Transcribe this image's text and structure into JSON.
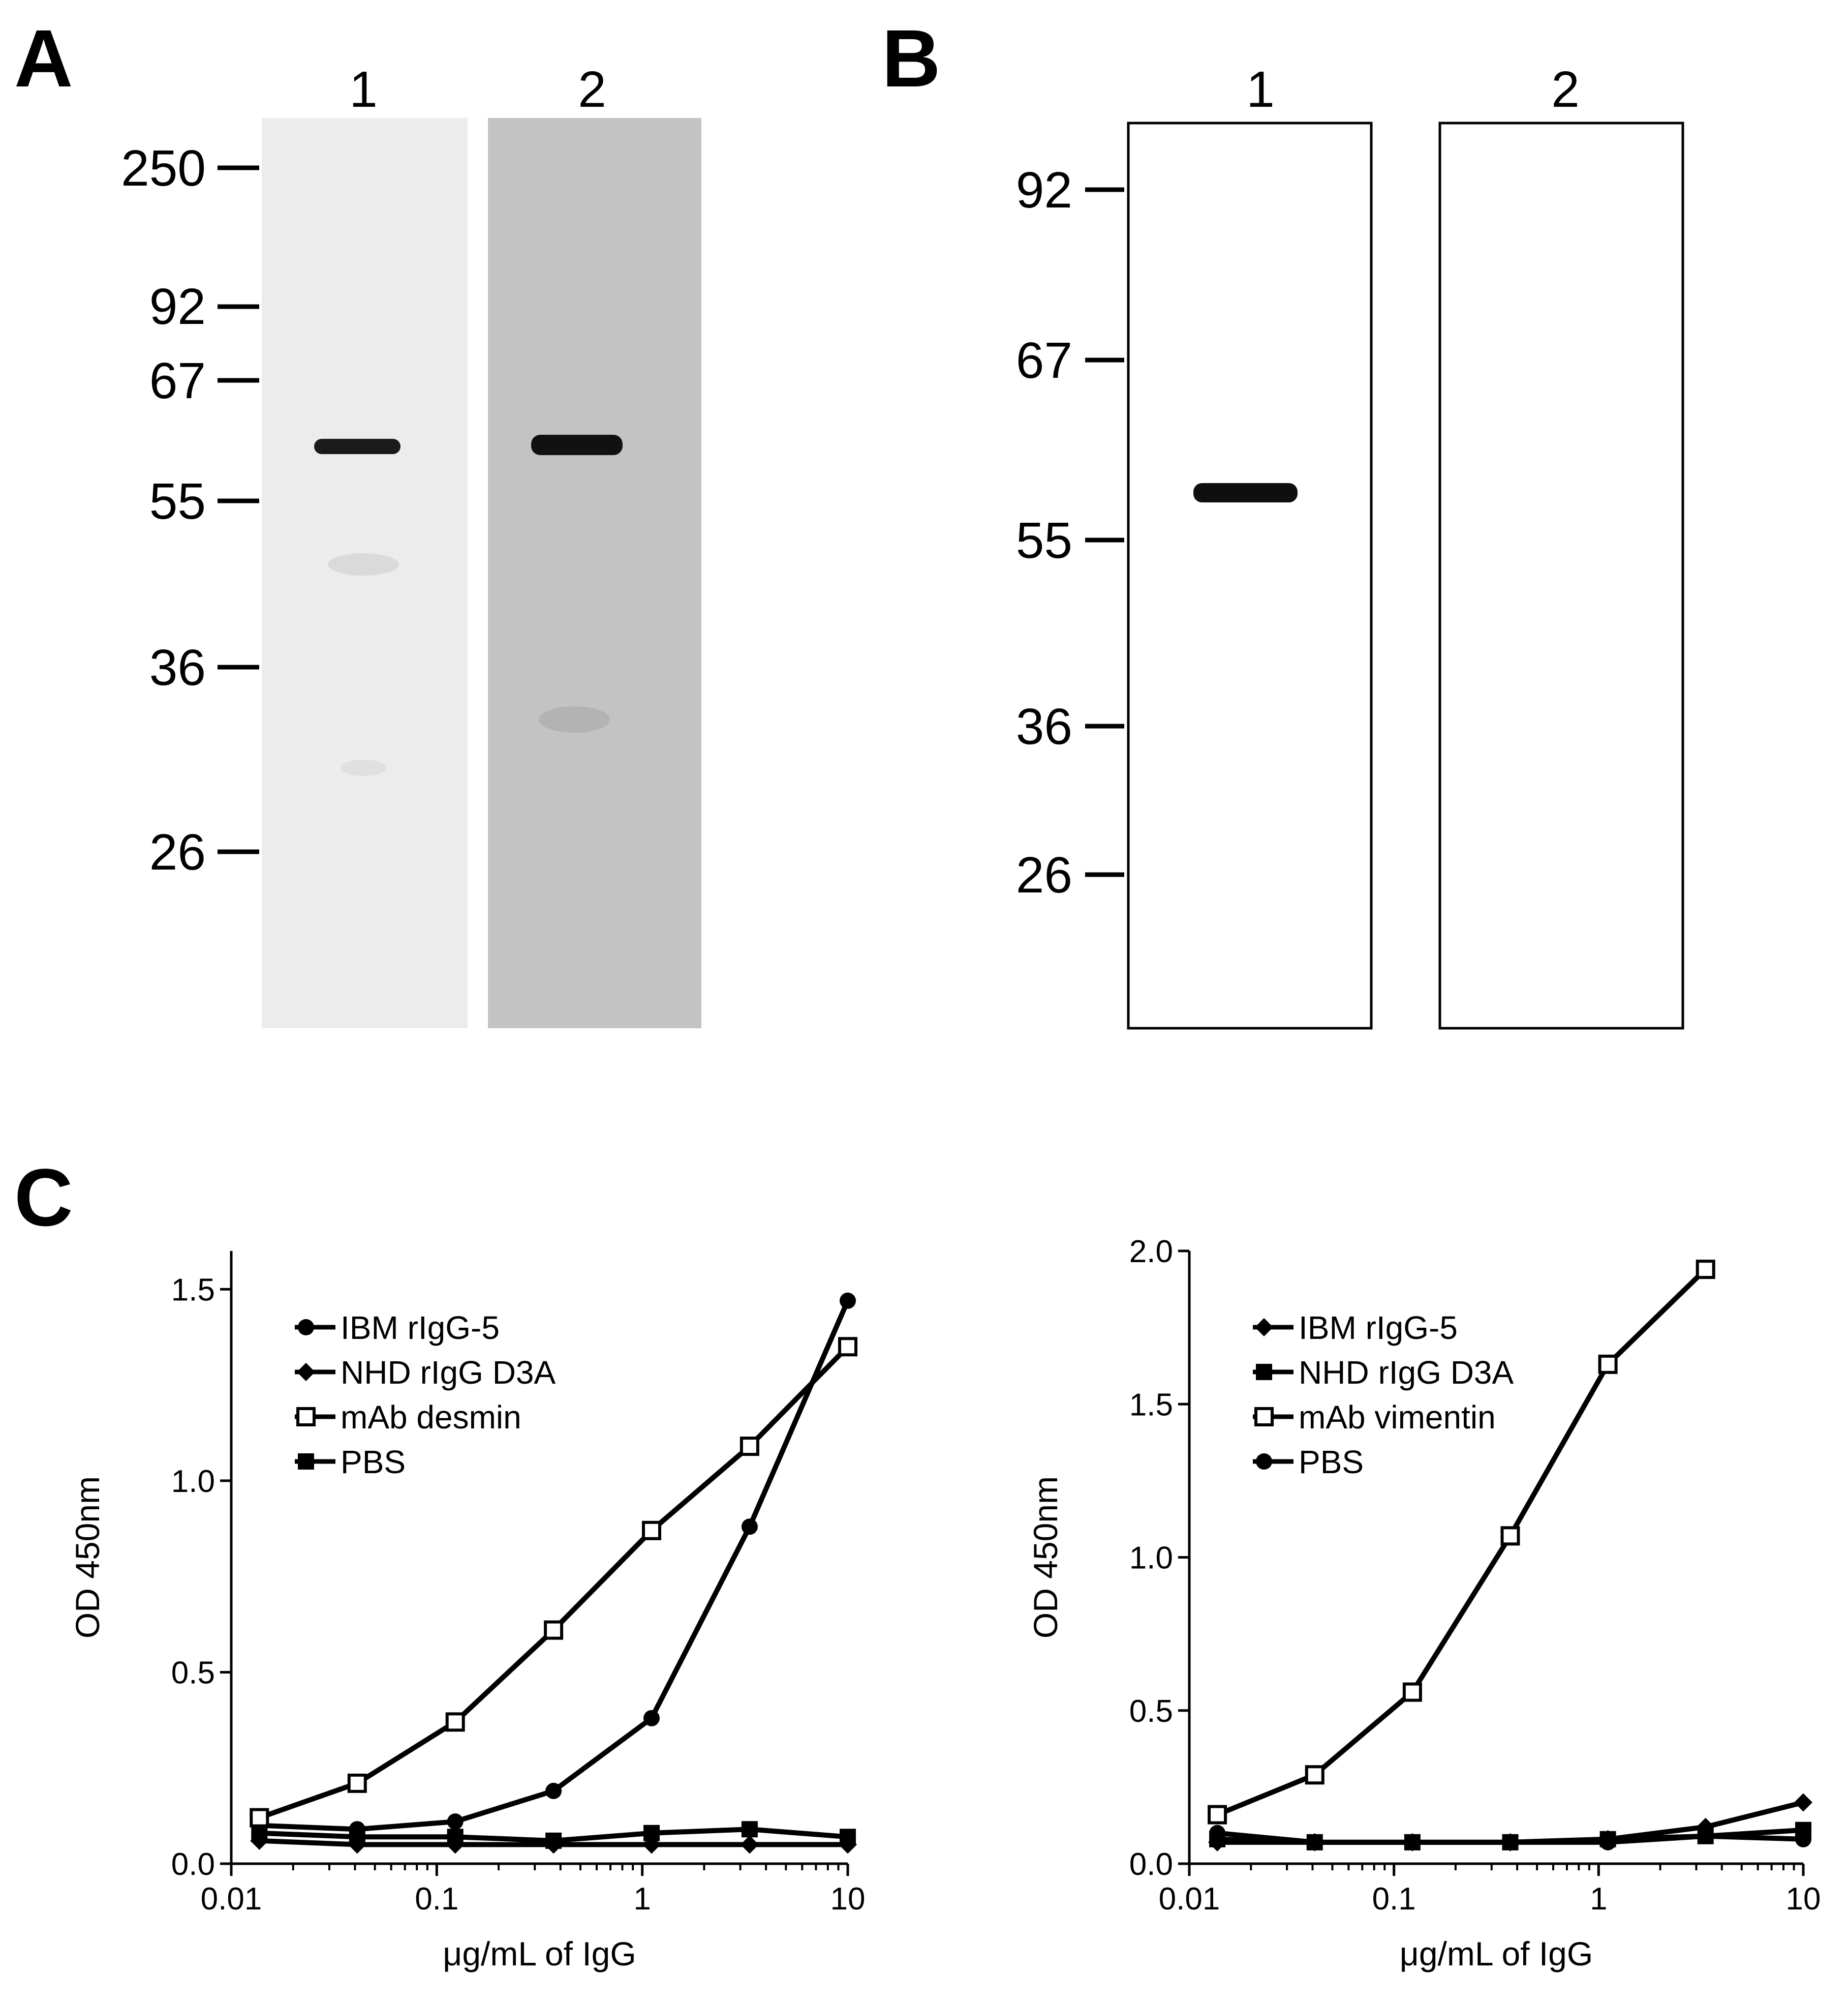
{
  "panels": {
    "A": {
      "letter": "A",
      "lanes": [
        "1",
        "2"
      ],
      "markers": [
        "250",
        "92",
        "67",
        "55",
        "36",
        "26"
      ]
    },
    "B": {
      "letter": "B",
      "lanes": [
        "1",
        "2"
      ],
      "markers": [
        "92",
        "67",
        "55",
        "36",
        "26"
      ]
    },
    "C": {
      "letter": "C"
    }
  },
  "chart_data": [
    {
      "type": "line",
      "xscale": "log",
      "xlabel": "μg/mL of IgG",
      "ylabel": "OD 450nm",
      "xlim": [
        0.01,
        10
      ],
      "ylim": [
        0,
        1.6
      ],
      "xticks": [
        "0.01",
        "0.1",
        "1",
        "10"
      ],
      "yticks": [
        "0.0",
        "0.5",
        "1.0",
        "1.5"
      ],
      "legend_position": "top-left",
      "x": [
        0.0137,
        0.041,
        0.123,
        0.37,
        1.11,
        3.33,
        10
      ],
      "series": [
        {
          "name": "IBM rIgG-5",
          "marker": "circle",
          "values": [
            0.1,
            0.09,
            0.11,
            0.19,
            0.38,
            0.88,
            1.47
          ]
        },
        {
          "name": "NHD rIgG D3A",
          "marker": "diamond",
          "values": [
            0.06,
            0.05,
            0.05,
            0.05,
            0.05,
            0.05,
            0.05
          ]
        },
        {
          "name": "mAb desmin",
          "marker": "open-square",
          "values": [
            0.12,
            0.21,
            0.37,
            0.61,
            0.87,
            1.09,
            1.35
          ]
        },
        {
          "name": "PBS",
          "marker": "square",
          "values": [
            0.08,
            0.07,
            0.07,
            0.06,
            0.08,
            0.09,
            0.07
          ]
        }
      ]
    },
    {
      "type": "line",
      "xscale": "log",
      "xlabel": "μg/mL of IgG",
      "ylabel": "OD 450nm",
      "xlim": [
        0.01,
        10
      ],
      "ylim": [
        0,
        2.0
      ],
      "xticks": [
        "0.01",
        "0.1",
        "1",
        "10"
      ],
      "yticks": [
        "0.0",
        "0.5",
        "1.0",
        "1.5",
        "2.0"
      ],
      "legend_position": "top-left",
      "x": [
        0.0137,
        0.041,
        0.123,
        0.37,
        1.11,
        3.33,
        10
      ],
      "series": [
        {
          "name": "IBM rIgG-5",
          "marker": "diamond",
          "values": [
            0.07,
            0.07,
            0.07,
            0.07,
            0.08,
            0.12,
            0.2
          ]
        },
        {
          "name": "NHD rIgG D3A",
          "marker": "square",
          "values": [
            0.08,
            0.07,
            0.07,
            0.07,
            0.08,
            0.09,
            0.11
          ]
        },
        {
          "name": "mAb vimentin",
          "marker": "open-square",
          "values": [
            0.16,
            0.29,
            0.56,
            1.07,
            1.63,
            1.94,
            null
          ]
        },
        {
          "name": "PBS",
          "marker": "circle",
          "values": [
            0.1,
            0.07,
            0.07,
            0.07,
            0.07,
            0.09,
            0.08
          ]
        }
      ]
    }
  ]
}
